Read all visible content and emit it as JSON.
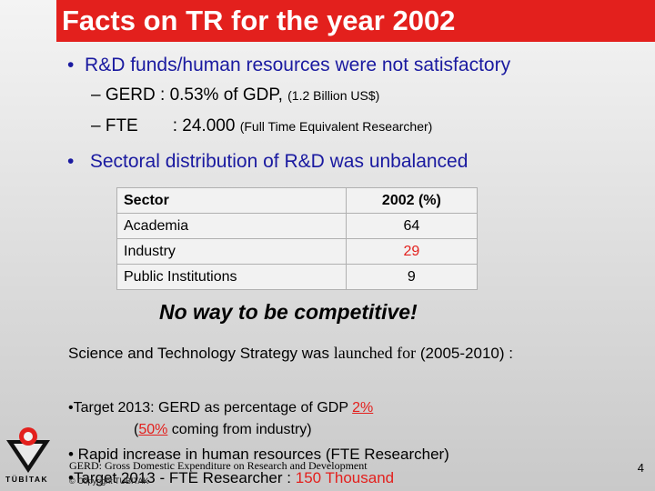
{
  "title": "Facts on TR for the year 2002",
  "bullets": {
    "b1": "R&D funds/human resources were not satisfactory",
    "gerd_main": "– GERD : 0.53% of GDP, ",
    "gerd_small": "(1.2 Billion US$)",
    "fte_main": "– FTE  : 24.000 ",
    "fte_small": "(Full Time Equivalent Researcher)",
    "b2": "Sectoral distribution of R&D was unbalanced"
  },
  "table": {
    "headers": [
      "Sector",
      "2002 (%)"
    ],
    "rows": [
      {
        "sector": "Academia",
        "value": "64"
      },
      {
        "sector": "Industry",
        "value": "29"
      },
      {
        "sector": "Public Institutions",
        "value": "9"
      }
    ]
  },
  "slogan": "No way to be competitive!",
  "strategy": {
    "part1": "Science and Technology Strategy was ",
    "part2": "launched for",
    "part3": " (2005-2010) :"
  },
  "targets": {
    "t1_text": "•Target 2013: GERD as percentage of GDP ",
    "t1_value": "2%",
    "t2_open": "(",
    "t2_value": "50%",
    "t2_text": " coming from industry)",
    "t3": "• Rapid increase in human resources (FTE Researcher)",
    "t4_text": "•Target 2013 - FTE Researcher : ",
    "t4_value": "150 Thousand"
  },
  "footnote": "GERD: Gross Domestic Expenditure on Research and Development",
  "footnote2": "© Copyright TUBITAK",
  "page_number": "4",
  "logo_text": "TÜBİTAK",
  "colors": {
    "accent": "#e3201d",
    "bullet_blue": "#1a1aa0"
  }
}
